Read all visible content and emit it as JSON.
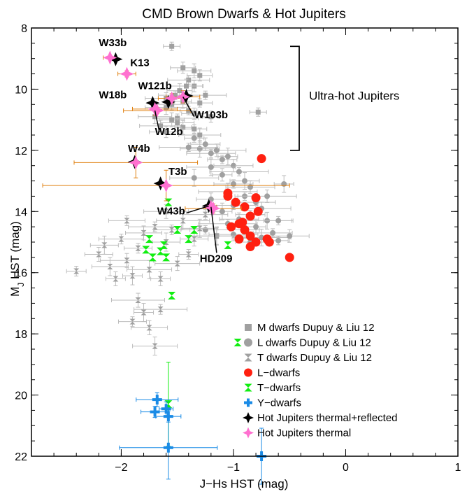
{
  "chart_data": {
    "type": "scatter",
    "title": "CMD Brown Dwarfs & Hot Jupiters",
    "xlabel": "J−Hs HST (mag)",
    "ylabel_main": "M",
    "ylabel_sub": "J",
    "ylabel_rest": " HST (mag)",
    "xlim": [
      -2.8,
      1.0
    ],
    "ylim": [
      22,
      8
    ],
    "y_inverted": true,
    "xticks": [
      -2,
      -1,
      0,
      1
    ],
    "xtick_labels": [
      "−2",
      "−1",
      "0",
      "1"
    ],
    "yticks": [
      8,
      10,
      12,
      14,
      16,
      18,
      20,
      22
    ],
    "ytick_labels": [
      "8",
      "10",
      "12",
      "14",
      "16",
      "18",
      "20",
      "22"
    ],
    "grid": false,
    "legend_position": "bottom-right",
    "bracket_label": "Ultra-hot Jupiters",
    "bracket_range": [
      8.6,
      12.0
    ],
    "colors": {
      "m_dwarf": "#a0a0a0",
      "l_dwarf_dl": "#a0a0a0",
      "t_dwarf_dl": "#a0a0a0",
      "l_dwarf": "#ff2010",
      "t_dwarf": "#10ee10",
      "y_dwarf": "#1a8be6",
      "hj_thermal_reflected": "#000000",
      "hj_thermal": "#ff70d0",
      "hj_error": "#e08010"
    },
    "legend": [
      {
        "label": "M dwarfs Dupuy & Liu 12",
        "marker": "square",
        "color_key": "m_dwarf"
      },
      {
        "label": "L dwarfs Dupuy & Liu 12",
        "marker": "circle",
        "color_key": "l_dwarf_dl"
      },
      {
        "label": "T dwarfs Dupuy & Liu 12",
        "marker": "hourglass",
        "color_key": "t_dwarf_dl"
      },
      {
        "label": "L−dwarfs",
        "marker": "circle",
        "color_key": "l_dwarf"
      },
      {
        "label": "T−dwarfs",
        "marker": "hourglass",
        "color_key": "t_dwarf"
      },
      {
        "label": "Y−dwarfs",
        "marker": "cross",
        "color_key": "y_dwarf"
      },
      {
        "label": "Hot Jupiters thermal+reflected",
        "marker": "star",
        "color_key": "hj_thermal_reflected"
      },
      {
        "label": "Hot Jupiters thermal",
        "marker": "star",
        "color_key": "hj_thermal"
      }
    ],
    "series": {
      "m_dwarfs_dl": [
        [
          -1.55,
          8.6
        ],
        [
          -1.45,
          9.3
        ],
        [
          -1.35,
          9.4
        ],
        [
          -1.4,
          9.7
        ],
        [
          -1.35,
          9.9
        ],
        [
          -1.48,
          10.05
        ],
        [
          -1.52,
          10.2
        ],
        [
          -1.6,
          10.3
        ],
        [
          -1.45,
          10.4
        ],
        [
          -1.3,
          10.45
        ],
        [
          -1.55,
          10.5
        ],
        [
          -1.6,
          10.6
        ],
        [
          -1.4,
          10.7
        ],
        [
          -1.35,
          10.8
        ],
        [
          -1.7,
          10.9
        ],
        [
          -1.5,
          10.95
        ],
        [
          -1.2,
          10.9
        ],
        [
          -1.55,
          11.0
        ],
        [
          -1.5,
          11.1
        ],
        [
          -1.65,
          11.2
        ],
        [
          -1.45,
          11.25
        ],
        [
          -1.35,
          11.3
        ],
        [
          -1.6,
          11.4
        ],
        [
          -1.3,
          11.5
        ],
        [
          -0.78,
          10.75
        ],
        [
          -1.3,
          9.55
        ],
        [
          -1.42,
          9.9
        ],
        [
          -1.25,
          10.2
        ]
      ],
      "l_dwarfs_dl": [
        [
          -1.35,
          11.6
        ],
        [
          -1.25,
          11.8
        ],
        [
          -1.3,
          11.95
        ],
        [
          -1.2,
          12.1
        ],
        [
          -1.15,
          12.0
        ],
        [
          -1.05,
          12.2
        ],
        [
          -1.1,
          12.3
        ],
        [
          -1.0,
          12.5
        ],
        [
          -1.2,
          12.55
        ],
        [
          -0.95,
          12.7
        ],
        [
          -1.1,
          12.8
        ],
        [
          -0.9,
          13.0
        ],
        [
          -1.0,
          13.1
        ],
        [
          -0.85,
          13.2
        ],
        [
          -1.05,
          13.35
        ],
        [
          -0.9,
          13.5
        ],
        [
          -1.2,
          13.6
        ],
        [
          -0.8,
          13.7
        ],
        [
          -1.0,
          13.8
        ],
        [
          -0.75,
          13.9
        ],
        [
          -1.1,
          14.0
        ],
        [
          -0.85,
          14.1
        ],
        [
          -0.95,
          14.25
        ],
        [
          -0.7,
          14.3
        ],
        [
          -1.05,
          14.4
        ],
        [
          -0.8,
          14.5
        ],
        [
          -0.9,
          14.6
        ],
        [
          -0.65,
          14.7
        ],
        [
          -1.0,
          14.75
        ],
        [
          -0.75,
          14.85
        ],
        [
          -0.6,
          14.95
        ],
        [
          -0.85,
          15.0
        ],
        [
          -1.15,
          14.8
        ],
        [
          -1.25,
          14.6
        ],
        [
          -0.7,
          13.5
        ],
        [
          -0.55,
          13.1
        ],
        [
          -0.6,
          14.3
        ],
        [
          -0.5,
          14.8
        ],
        [
          -1.35,
          12.9
        ],
        [
          -1.4,
          11.9
        ]
      ],
      "t_dwarfs_dl": [
        [
          -2.4,
          15.95
        ],
        [
          -2.2,
          15.4
        ],
        [
          -2.1,
          15.8
        ],
        [
          -2.0,
          14.9
        ],
        [
          -1.95,
          15.6
        ],
        [
          -1.9,
          16.1
        ],
        [
          -1.85,
          15.2
        ],
        [
          -1.8,
          14.7
        ],
        [
          -1.75,
          15.9
        ],
        [
          -1.7,
          14.5
        ],
        [
          -1.65,
          16.2
        ],
        [
          -1.6,
          15.0
        ],
        [
          -1.55,
          14.6
        ],
        [
          -1.5,
          15.7
        ],
        [
          -1.45,
          14.3
        ],
        [
          -1.4,
          15.4
        ],
        [
          -1.35,
          14.9
        ],
        [
          -1.3,
          14.55
        ],
        [
          -1.25,
          14.1
        ],
        [
          -1.85,
          16.9
        ],
        [
          -1.8,
          17.3
        ],
        [
          -1.9,
          17.6
        ],
        [
          -1.75,
          17.8
        ],
        [
          -1.7,
          18.4
        ],
        [
          -1.65,
          17.2
        ],
        [
          -2.05,
          16.2
        ],
        [
          -2.15,
          15.1
        ],
        [
          -1.95,
          14.3
        ],
        [
          -1.6,
          14.0
        ],
        [
          -1.15,
          14.8
        ]
      ],
      "l_dwarfs": [
        [
          -0.75,
          12.27
        ],
        [
          -1.05,
          13.4
        ],
        [
          -0.98,
          13.7
        ],
        [
          -1.05,
          13.5
        ],
        [
          -0.8,
          13.55
        ],
        [
          -0.9,
          13.85
        ],
        [
          -0.78,
          14.0
        ],
        [
          -0.85,
          14.15
        ],
        [
          -0.95,
          14.4
        ],
        [
          -1.02,
          14.5
        ],
        [
          -0.9,
          14.6
        ],
        [
          -0.92,
          14.35
        ],
        [
          -0.85,
          14.8
        ],
        [
          -0.7,
          14.9
        ],
        [
          -0.95,
          14.9
        ],
        [
          -0.8,
          15.0
        ],
        [
          -0.68,
          15.0
        ],
        [
          -0.85,
          15.15
        ],
        [
          -0.5,
          15.5
        ]
      ],
      "t_dwarfs": [
        [
          -1.58,
          13.7
        ],
        [
          -1.75,
          14.9
        ],
        [
          -1.78,
          15.25
        ],
        [
          -1.62,
          15.1
        ],
        [
          -1.5,
          14.6
        ],
        [
          -1.4,
          14.9
        ],
        [
          -1.65,
          15.3
        ],
        [
          -1.72,
          15.5
        ],
        [
          -1.6,
          15.5
        ],
        [
          -1.35,
          14.6
        ],
        [
          -1.05,
          15.1
        ],
        [
          -1.55,
          16.75
        ],
        [
          -1.58,
          20.3
        ]
      ],
      "y_dwarfs": [
        [
          -1.68,
          20.15
        ],
        [
          -1.7,
          20.55
        ],
        [
          -1.6,
          20.45
        ],
        [
          -1.58,
          20.7
        ],
        [
          -1.58,
          21.72
        ],
        [
          -0.75,
          22.0
        ]
      ],
      "hj_thermal": [
        {
          "name": "W33b",
          "x": -2.1,
          "y": 8.97,
          "xerr": 0.06,
          "yerr": 0.05
        },
        {
          "name": "K13",
          "x": -1.95,
          "y": 9.5,
          "xerr": 0.08,
          "yerr": 0.1
        },
        {
          "name": "W121b",
          "x": -1.55,
          "y": 10.3,
          "xerr": 0.12,
          "yerr": 0.15
        },
        {
          "name": "W18b",
          "x": -1.68,
          "y": 10.7,
          "xerr": 0.3,
          "yerr": 0.1
        },
        {
          "name": "W103b",
          "x": -1.45,
          "y": 10.25,
          "xerr": 0.15,
          "yerr": 0.2
        },
        {
          "name": "W12b",
          "x": -1.7,
          "y": 10.65,
          "xerr": 0.2,
          "yerr": 0.2
        },
        {
          "name": "W4b",
          "x": -1.87,
          "y": 12.4,
          "xerr": 0.55,
          "yerr": 0.5
        },
        {
          "name": "T3b",
          "x": -1.6,
          "y": 13.15,
          "xerr": 1.1,
          "yerr": 0.5
        },
        {
          "name": "W43b",
          "x": -1.18,
          "y": 13.9,
          "xerr": 0.25,
          "yerr": 0.15
        },
        {
          "name": "HD209",
          "x": -1.2,
          "y": 13.85,
          "xerr": 0.05,
          "yerr": 0.05
        }
      ],
      "hj_thermal_reflected": [
        {
          "x": -2.05,
          "y": 9.02
        },
        {
          "x": -1.72,
          "y": 10.45
        },
        {
          "x": -1.42,
          "y": 10.22
        },
        {
          "x": -1.88,
          "y": 12.38
        },
        {
          "x": -1.65,
          "y": 13.08
        },
        {
          "x": -1.22,
          "y": 13.82
        },
        {
          "x": -1.58,
          "y": 10.42
        }
      ]
    },
    "annotations": [
      {
        "text": "W33b",
        "x": -2.2,
        "y": 8.6
      },
      {
        "text": "K13",
        "x": -1.92,
        "y": 9.25
      },
      {
        "text": "W121b",
        "x": -1.85,
        "y": 10.0
      },
      {
        "text": "W18b",
        "x": -2.2,
        "y": 10.3
      },
      {
        "text": "W103b",
        "x": -1.35,
        "y": 10.95
      },
      {
        "text": "W12b",
        "x": -1.7,
        "y": 11.5
      },
      {
        "text": "W4b",
        "x": -1.94,
        "y": 12.05
      },
      {
        "text": "T3b",
        "x": -1.58,
        "y": 12.8
      },
      {
        "text": "W43b",
        "x": -1.68,
        "y": 14.1
      },
      {
        "text": "HD209",
        "x": -1.3,
        "y": 15.65
      }
    ]
  }
}
